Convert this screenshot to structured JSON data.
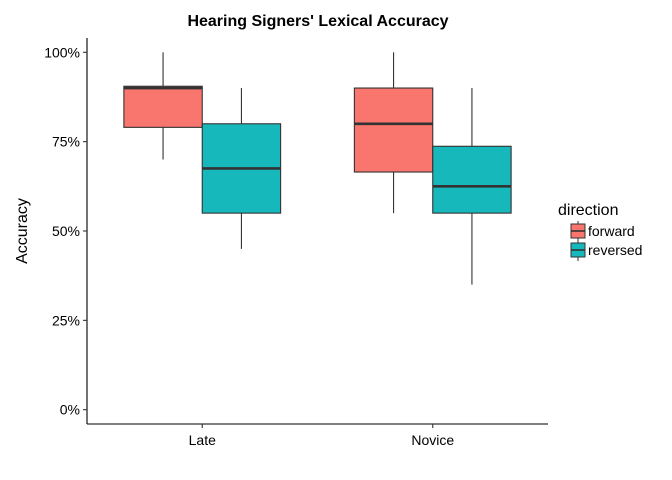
{
  "chart_data": {
    "type": "boxplot",
    "title": "Hearing Signers' Lexical Accuracy",
    "xlabel": "",
    "ylabel": "Accuracy",
    "ylim": [
      -0.04,
      1.04
    ],
    "yticks": [
      0,
      0.25,
      0.5,
      0.75,
      1.0
    ],
    "ytick_labels": [
      "0%",
      "25%",
      "50%",
      "75%",
      "100%"
    ],
    "categories": [
      "Late",
      "Novice"
    ],
    "legend": {
      "title": "direction",
      "position": "right"
    },
    "series": [
      {
        "name": "forward",
        "color": "#F8766D",
        "boxes": [
          {
            "whisker_low": 0.7,
            "q1": 0.79,
            "median": 0.9,
            "q3": 0.905,
            "whisker_high": 1.0
          },
          {
            "whisker_low": 0.55,
            "q1": 0.665,
            "median": 0.8,
            "q3": 0.9,
            "whisker_high": 1.0
          }
        ]
      },
      {
        "name": "reversed",
        "color": "#17B8BC",
        "boxes": [
          {
            "whisker_low": 0.45,
            "q1": 0.55,
            "median": 0.675,
            "q3": 0.8,
            "whisker_high": 0.9
          },
          {
            "whisker_low": 0.35,
            "q1": 0.55,
            "median": 0.625,
            "q3": 0.737,
            "whisker_high": 0.9
          }
        ]
      }
    ]
  }
}
